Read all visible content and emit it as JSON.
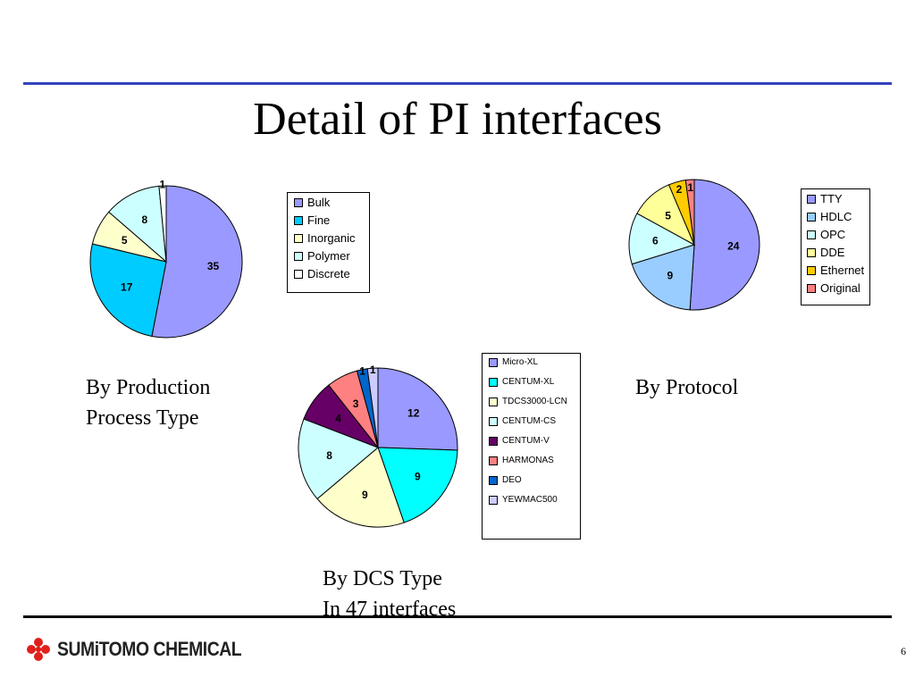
{
  "slide": {
    "title": "Detail of PI interfaces",
    "page_number": "6",
    "logo_text": "SUMiTOMO CHEMICAL"
  },
  "captions": {
    "production": [
      "By Production",
      "Process Type"
    ],
    "protocol": [
      "By Protocol"
    ],
    "dcs": [
      "By DCS Type",
      "In 47 interfaces"
    ]
  },
  "chart_data": [
    {
      "id": "production",
      "type": "pie",
      "title": "",
      "categories": [
        "Bulk",
        "Fine",
        "Inorganic",
        "Polymer",
        "Discrete"
      ],
      "values": [
        35,
        17,
        5,
        8,
        1
      ],
      "colors": [
        "#9999ff",
        "#00ccff",
        "#ffffcc",
        "#ccffff",
        "#ffffff"
      ],
      "legend_position": "right"
    },
    {
      "id": "protocol",
      "type": "pie",
      "title": "",
      "categories": [
        "TTY",
        "HDLC",
        "OPC",
        "DDE",
        "Ethernet",
        "Original"
      ],
      "values": [
        24,
        9,
        6,
        5,
        2,
        1
      ],
      "colors": [
        "#9999ff",
        "#99ccff",
        "#ccffff",
        "#ffff99",
        "#ffcc00",
        "#ff8080"
      ],
      "legend_position": "right"
    },
    {
      "id": "dcs",
      "type": "pie",
      "title": "",
      "categories": [
        "Micro-XL",
        "CENTUM-XL",
        "TDCS3000-LCN",
        "CENTUM-CS",
        "CENTUM-V",
        "HARMONAS",
        "DEO",
        "YEWMAC500"
      ],
      "values": [
        12,
        9,
        9,
        8,
        4,
        3,
        1,
        1
      ],
      "colors": [
        "#9999ff",
        "#00ffff",
        "#ffffcc",
        "#ccffff",
        "#660066",
        "#ff8080",
        "#0066cc",
        "#ccccff"
      ],
      "legend_position": "right"
    }
  ]
}
